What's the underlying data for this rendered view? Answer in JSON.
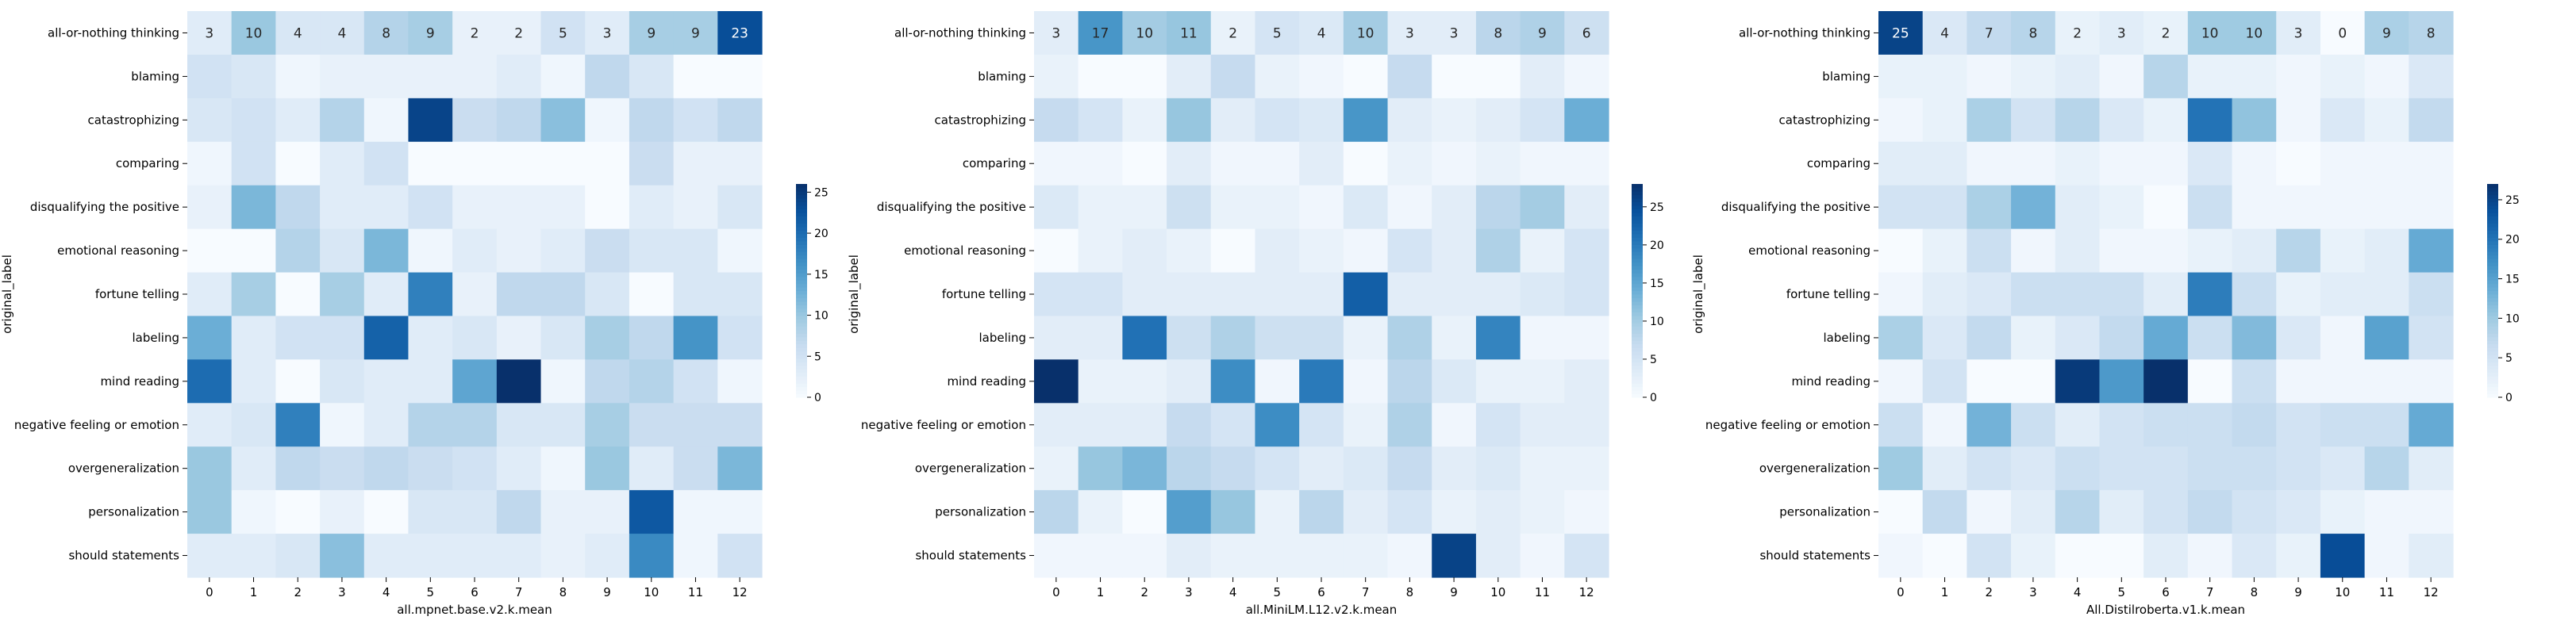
{
  "row_labels": [
    "all-or-nothing thinking",
    "blaming",
    "catastrophizing",
    "comparing",
    "disqualifying the positive",
    "emotional reasoning",
    "fortune telling",
    "labeling",
    "mind reading",
    "negative feeling or emotion",
    "overgeneralization",
    "personalization",
    "should statements"
  ],
  "column_ticks": [
    "0",
    "1",
    "2",
    "3",
    "4",
    "5",
    "6",
    "7",
    "8",
    "9",
    "10",
    "11",
    "12"
  ],
  "y_axis_label": "original_label",
  "colormap": [
    "#f7fbff",
    "#deebf7",
    "#c6dbef",
    "#9ecae1",
    "#6baed6",
    "#4292c6",
    "#2171b5",
    "#08519c",
    "#08306b"
  ],
  "chart_data": [
    {
      "type": "heatmap",
      "xlabel": "all.mpnet.base.v2.k.mean",
      "ylabel": "original_label",
      "color_range": [
        0,
        26
      ],
      "colorbar_ticks": [
        "0",
        "5",
        "10",
        "15",
        "20",
        "25"
      ],
      "colorbar_values": [
        0,
        5,
        10,
        15,
        20,
        25
      ],
      "annotated_row": 0,
      "values": [
        [
          3,
          10,
          4,
          4,
          8,
          9,
          2,
          2,
          5,
          3,
          9,
          9,
          23
        ],
        [
          5,
          4,
          1,
          2,
          2,
          2,
          2,
          3,
          1,
          7,
          4,
          0,
          0
        ],
        [
          4,
          5,
          3,
          8,
          1,
          24,
          6,
          7,
          11,
          1,
          7,
          5,
          7
        ],
        [
          1,
          5,
          0,
          3,
          5,
          0,
          0,
          0,
          0,
          0,
          6,
          2,
          2
        ],
        [
          2,
          12,
          7,
          3,
          3,
          5,
          2,
          2,
          2,
          0,
          3,
          2,
          4
        ],
        [
          0,
          0,
          8,
          4,
          12,
          1,
          3,
          2,
          3,
          6,
          4,
          4,
          1
        ],
        [
          3,
          9,
          0,
          9,
          3,
          18,
          2,
          7,
          7,
          4,
          0,
          4,
          4
        ],
        [
          13,
          3,
          5,
          5,
          21,
          3,
          4,
          2,
          4,
          9,
          7,
          16,
          5
        ],
        [
          20,
          3,
          0,
          4,
          3,
          3,
          14,
          26,
          1,
          7,
          8,
          5,
          1
        ],
        [
          3,
          4,
          18,
          1,
          3,
          8,
          8,
          4,
          4,
          9,
          6,
          6,
          6
        ],
        [
          10,
          3,
          7,
          6,
          7,
          6,
          5,
          3,
          1,
          10,
          3,
          6,
          12
        ],
        [
          10,
          1,
          0,
          2,
          0,
          4,
          4,
          7,
          2,
          2,
          22,
          1,
          1
        ],
        [
          3,
          3,
          4,
          11,
          3,
          3,
          3,
          3,
          2,
          3,
          17,
          1,
          5
        ]
      ]
    },
    {
      "type": "heatmap",
      "xlabel": "all.MiniLM.L12.v2.k.mean",
      "ylabel": "original_label",
      "color_range": [
        0,
        28
      ],
      "colorbar_ticks": [
        "0",
        "5",
        "10",
        "15",
        "20",
        "25"
      ],
      "colorbar_values": [
        0,
        5,
        10,
        15,
        20,
        25
      ],
      "annotated_row": 0,
      "values": [
        [
          3,
          17,
          10,
          11,
          2,
          5,
          4,
          10,
          3,
          3,
          8,
          9,
          6
        ],
        [
          2,
          0,
          0,
          3,
          7,
          2,
          1,
          0,
          7,
          0,
          0,
          3,
          1
        ],
        [
          7,
          5,
          2,
          11,
          3,
          5,
          4,
          17,
          3,
          2,
          3,
          5,
          14
        ],
        [
          1,
          1,
          0,
          3,
          1,
          1,
          3,
          0,
          2,
          1,
          2,
          1,
          1
        ],
        [
          4,
          2,
          2,
          6,
          2,
          2,
          1,
          4,
          1,
          3,
          8,
          10,
          3
        ],
        [
          0,
          2,
          3,
          2,
          0,
          3,
          2,
          1,
          5,
          3,
          9,
          2,
          5
        ],
        [
          5,
          5,
          3,
          3,
          3,
          3,
          3,
          23,
          3,
          3,
          3,
          4,
          5
        ],
        [
          3,
          3,
          21,
          6,
          9,
          6,
          6,
          2,
          9,
          2,
          19,
          1,
          1
        ],
        [
          28,
          2,
          2,
          3,
          18,
          1,
          20,
          1,
          8,
          4,
          2,
          2,
          3
        ],
        [
          3,
          3,
          3,
          7,
          5,
          18,
          5,
          2,
          9,
          1,
          5,
          3,
          3
        ],
        [
          2,
          11,
          13,
          8,
          7,
          5,
          3,
          4,
          7,
          3,
          4,
          2,
          2
        ],
        [
          8,
          2,
          0,
          16,
          11,
          2,
          8,
          3,
          5,
          2,
          3,
          2,
          1
        ],
        [
          1,
          1,
          1,
          3,
          2,
          2,
          2,
          2,
          1,
          26,
          3,
          1,
          5
        ]
      ]
    },
    {
      "type": "heatmap",
      "xlabel": "All.Distilroberta.v1.k.mean",
      "ylabel": "original_label",
      "color_range": [
        0,
        27
      ],
      "colorbar_ticks": [
        "0",
        "5",
        "10",
        "15",
        "20",
        "25"
      ],
      "colorbar_values": [
        0,
        5,
        10,
        15,
        20,
        25
      ],
      "annotated_row": 0,
      "values": [
        [
          25,
          4,
          7,
          8,
          2,
          3,
          2,
          10,
          10,
          3,
          0,
          9,
          8
        ],
        [
          2,
          2,
          1,
          2,
          3,
          1,
          8,
          2,
          2,
          1,
          2,
          1,
          4
        ],
        [
          1,
          2,
          9,
          5,
          8,
          4,
          2,
          20,
          11,
          1,
          4,
          2,
          7
        ],
        [
          3,
          3,
          1,
          1,
          2,
          1,
          1,
          4,
          1,
          0,
          1,
          1,
          1
        ],
        [
          5,
          5,
          9,
          13,
          3,
          2,
          0,
          6,
          1,
          1,
          1,
          1,
          1
        ],
        [
          0,
          2,
          6,
          1,
          3,
          1,
          1,
          2,
          3,
          8,
          2,
          3,
          14
        ],
        [
          1,
          3,
          4,
          6,
          6,
          6,
          3,
          19,
          6,
          2,
          3,
          3,
          6
        ],
        [
          9,
          4,
          7,
          2,
          4,
          7,
          14,
          6,
          12,
          4,
          1,
          15,
          5
        ],
        [
          1,
          5,
          0,
          0,
          26,
          16,
          27,
          0,
          6,
          1,
          1,
          1,
          1
        ],
        [
          6,
          1,
          13,
          6,
          3,
          5,
          6,
          6,
          7,
          5,
          6,
          6,
          14
        ],
        [
          10,
          3,
          5,
          4,
          6,
          5,
          5,
          6,
          6,
          5,
          4,
          8,
          3
        ],
        [
          0,
          7,
          1,
          3,
          8,
          3,
          5,
          7,
          5,
          4,
          2,
          1,
          1
        ],
        [
          1,
          0,
          5,
          2,
          0,
          0,
          3,
          1,
          4,
          2,
          24,
          1,
          3
        ]
      ]
    }
  ]
}
